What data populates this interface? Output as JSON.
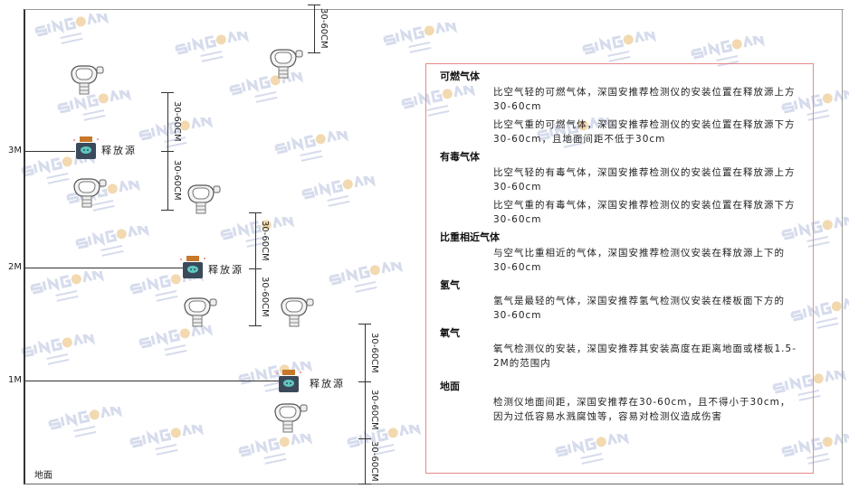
{
  "watermark": {
    "brand": "SINGOAN",
    "cn": "深国安"
  },
  "floors": {
    "m3": "3M",
    "m2": "2M",
    "m1": "1M",
    "ground": "地面"
  },
  "source_label": "释放源",
  "dimension_label": "30-60CM",
  "legend": {
    "combustible": {
      "title": "可燃气体",
      "lighter": "比空气轻的可燃气体，深国安推荐检测仪的安装位置在释放源上方30-60cm",
      "heavier": "比空气重的可燃气体，深国安推荐检测仪的安装位置在释放源下方30-60cm，且地面间距不低于30cm"
    },
    "toxic": {
      "title": "有毒气体",
      "lighter": "比空气轻的有毒气体，深国安推荐检测仪的安装位置在释放源上方30-60cm",
      "heavier": "比空气重的有毒气体，深国安推荐检测仪的安装位置在释放源下方30-60cm"
    },
    "similar": {
      "title": "比重相近气体",
      "text": "与空气比重相近的气体，深国安推荐检测仪安装在释放源上下的30-60cm"
    },
    "hydrogen": {
      "title": "氢气",
      "text": "氢气是最轻的气体，深国安推荐氢气检测仪安装在楼板面下方的30-60cm"
    },
    "oxygen": {
      "title": "氧气",
      "text": "氧气检测仪的安装，深国安推荐其安装高度在距离地面或楼板1.5-2M的范围内"
    },
    "ground": {
      "title": "地面",
      "text": "检测仪地面间距，深国安推荐在30-60cm，且不得小于30cm，因为过低容易水溅腐蚀等，容易对检测仪造成伤害"
    }
  },
  "colors": {
    "box_border": "#e58a8a",
    "source_body": "#3a4a5a",
    "source_cap": "#c8782a",
    "source_face": "#5fc8c0"
  }
}
